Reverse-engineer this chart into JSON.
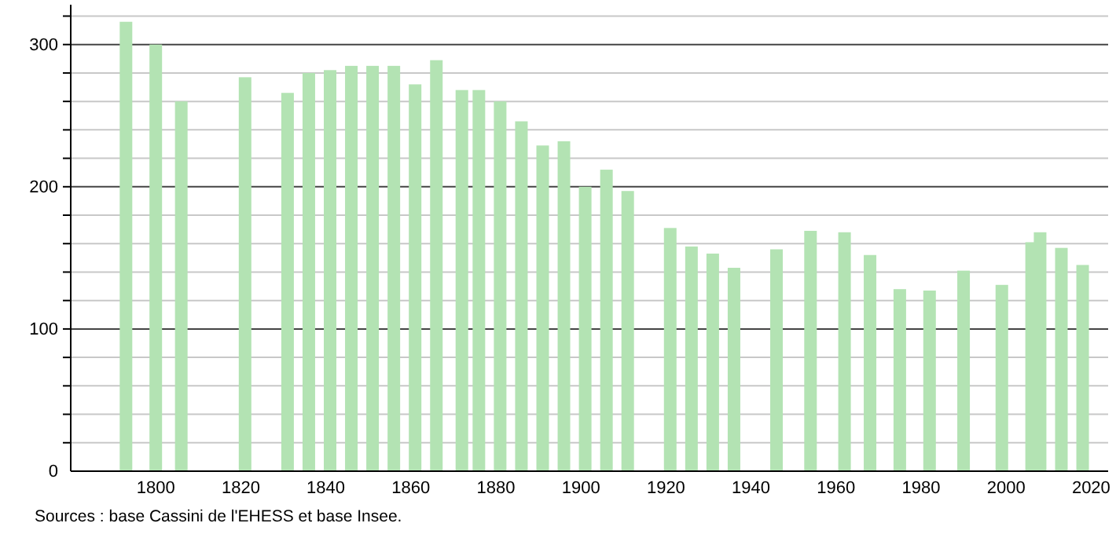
{
  "chart_data": {
    "type": "bar",
    "x": [
      1793,
      1800,
      1806,
      1821,
      1831,
      1836,
      1841,
      1846,
      1851,
      1856,
      1861,
      1866,
      1872,
      1876,
      1881,
      1886,
      1891,
      1896,
      1901,
      1906,
      1911,
      1921,
      1926,
      1931,
      1936,
      1946,
      1954,
      1962,
      1968,
      1975,
      1982,
      1990,
      1999,
      2006,
      2008,
      2013,
      2018
    ],
    "values": [
      316,
      300,
      260,
      277,
      266,
      280,
      282,
      285,
      285,
      285,
      272,
      289,
      268,
      268,
      260,
      246,
      229,
      232,
      200,
      212,
      197,
      171,
      158,
      153,
      143,
      156,
      169,
      168,
      152,
      128,
      127,
      141,
      131,
      161,
      168,
      157,
      145
    ],
    "color": "#b3e3b3",
    "xlim": [
      1780,
      2024
    ],
    "xticks": [
      1800,
      1820,
      1840,
      1860,
      1880,
      1900,
      1920,
      1940,
      1960,
      1980,
      2000,
      2020
    ],
    "ylim": [
      0,
      328
    ],
    "yticks": [
      0,
      {
        "value": 20,
        "label": null
      },
      {
        "value": 40,
        "label": null
      },
      {
        "value": 60,
        "label": null
      },
      {
        "value": 80,
        "label": null
      },
      100,
      {
        "value": 120,
        "label": null
      },
      {
        "value": 140,
        "label": null
      },
      {
        "value": 160,
        "label": null
      },
      {
        "value": 180,
        "label": null
      },
      200,
      {
        "value": 220,
        "label": null
      },
      {
        "value": 240,
        "label": null
      },
      {
        "value": 260,
        "label": null
      },
      {
        "value": 280,
        "label": null
      },
      300,
      {
        "value": 320,
        "label": null
      }
    ],
    "grid": true,
    "annotations": [
      "Sources : base Cassini de l'EHESS et base Insee."
    ]
  }
}
